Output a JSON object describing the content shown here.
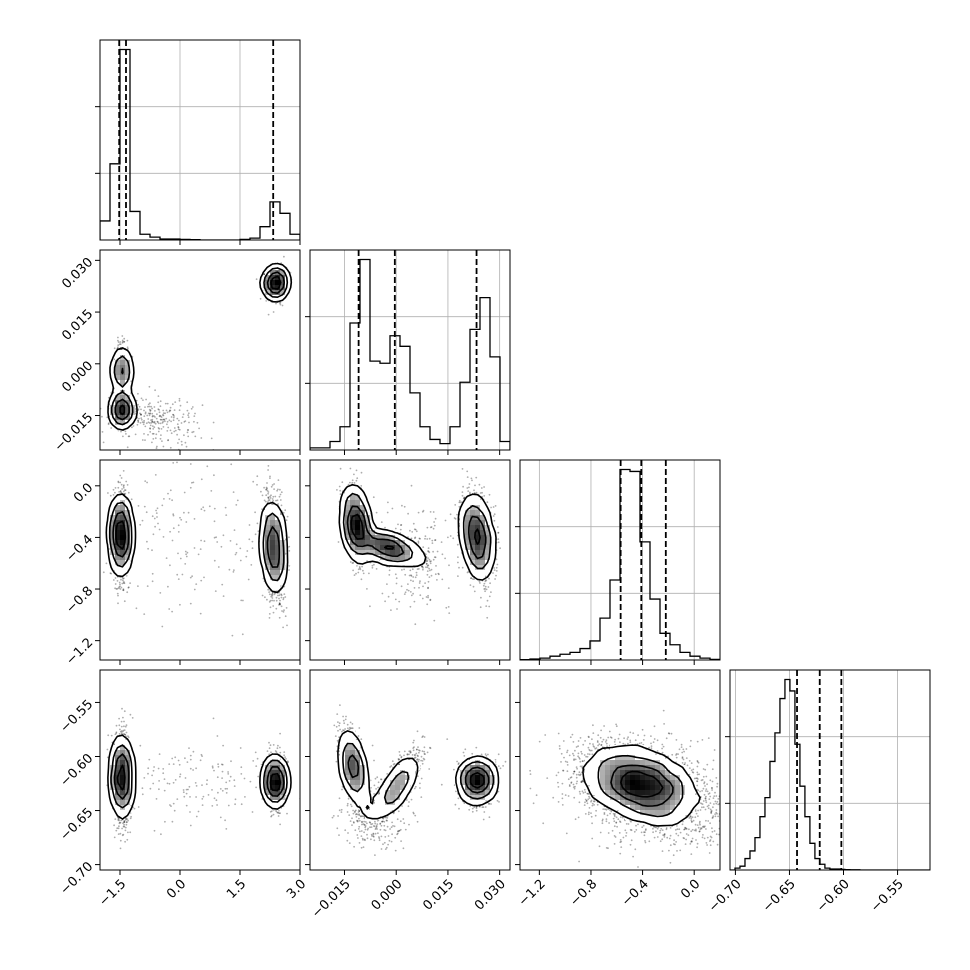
{
  "chart_data": {
    "type": "corner",
    "grid": true,
    "parameters": [
      {
        "range": [
          -2.0,
          3.0
        ],
        "ticks": [
          {
            "v": -1.5,
            "label": "−1.5"
          },
          {
            "v": 0.0,
            "label": "0.0"
          },
          {
            "v": 1.5,
            "label": "1.5"
          },
          {
            "v": 3.0,
            "label": "3.0"
          }
        ],
        "quantiles": [
          -1.52,
          -1.35,
          2.33
        ],
        "hist": {
          "start": -2.0,
          "width": 0.25,
          "counts": [
            10,
            40,
            100,
            15,
            3,
            1.5,
            0.5,
            0.5,
            0.3,
            0.2,
            0,
            0,
            0,
            0,
            0.3,
            1,
            7,
            20,
            14,
            3
          ]
        }
      },
      {
        "range": [
          -0.025,
          0.033
        ],
        "ticks": [
          {
            "v": -0.015,
            "label": "−0.015"
          },
          {
            "v": 0.0,
            "label": "0.000"
          },
          {
            "v": 0.015,
            "label": "0.015"
          },
          {
            "v": 0.03,
            "label": "0.030"
          }
        ],
        "quantiles": [
          -0.0109,
          -0.0004,
          0.0233
        ],
        "hist": {
          "start": -0.025,
          "width": 0.0029,
          "counts": [
            1,
            1,
            4,
            11,
            60,
            90,
            42,
            41,
            54,
            49,
            27,
            11,
            5,
            3,
            11,
            32,
            57,
            72,
            44,
            4
          ]
        }
      },
      {
        "range": [
          -1.35,
          0.2
        ],
        "ticks": [
          {
            "v": -1.2,
            "label": "−1.2"
          },
          {
            "v": -0.8,
            "label": "−0.8"
          },
          {
            "v": -0.4,
            "label": "−0.4"
          },
          {
            "v": 0.0,
            "label": "0.0"
          }
        ],
        "quantiles": [
          -0.57,
          -0.41,
          -0.22
        ],
        "hist": {
          "start": -1.35,
          "width": 0.0775,
          "counts": [
            0.2,
            0.5,
            1,
            2,
            3,
            4,
            6,
            10,
            22,
            42,
            100,
            99,
            62,
            32,
            14,
            8,
            4,
            2,
            1,
            0.3
          ]
        }
      },
      {
        "range": [
          -0.705,
          -0.52
        ],
        "ticks": [
          {
            "v": -0.7,
            "label": "−0.70"
          },
          {
            "v": -0.65,
            "label": "−0.65"
          },
          {
            "v": -0.6,
            "label": "−0.60"
          },
          {
            "v": -0.55,
            "label": "−0.55"
          }
        ],
        "quantiles": [
          -0.643,
          -0.622,
          -0.602
        ],
        "hist": {
          "start": -0.705,
          "width": 0.00462,
          "counts": [
            0,
            1,
            2,
            6,
            10,
            17,
            28,
            38,
            57,
            72,
            90,
            100,
            94,
            66,
            44,
            28,
            14,
            6,
            3,
            1,
            0.5,
            0.5,
            0.3,
            0.2,
            0.1,
            0.1,
            0,
            0,
            0,
            0,
            0,
            0,
            0,
            0,
            0,
            0,
            0,
            0,
            0,
            0
          ]
        }
      }
    ],
    "pairs": [
      {
        "row": 1,
        "col": 0,
        "clusters": [
          {
            "x": 2.4,
            "y": 0.0235,
            "sx": 0.12,
            "sy": 0.0022,
            "rho": 0.0,
            "n": 1300
          },
          {
            "x": -1.45,
            "y": -0.002,
            "sx": 0.09,
            "sy": 0.0035,
            "rho": 0.0,
            "n": 900
          },
          {
            "x": -1.45,
            "y": -0.0135,
            "sx": 0.11,
            "sy": 0.0022,
            "rho": 0.0,
            "n": 1100
          },
          {
            "x": -0.6,
            "y": -0.016,
            "sx": 0.55,
            "sy": 0.0035,
            "rho": -0.2,
            "n": 260
          }
        ]
      },
      {
        "row": 2,
        "col": 0,
        "clusters": [
          {
            "x": -1.48,
            "y": -0.38,
            "sx": 0.1,
            "sy": 0.15,
            "rho": 0.0,
            "n": 2000
          },
          {
            "x": 2.35,
            "y": -0.48,
            "sx": 0.12,
            "sy": 0.18,
            "rho": -0.2,
            "n": 1900
          },
          {
            "x": 0.4,
            "y": -0.4,
            "sx": 1.1,
            "sy": 0.3,
            "rho": 0.0,
            "n": 160
          }
        ]
      },
      {
        "row": 2,
        "col": 1,
        "clusters": [
          {
            "x": -0.0115,
            "y": -0.3,
            "sx": 0.0018,
            "sy": 0.14,
            "rho": -0.3,
            "n": 1300
          },
          {
            "x": -0.002,
            "y": -0.48,
            "sx": 0.0045,
            "sy": 0.06,
            "rho": -0.6,
            "n": 1000
          },
          {
            "x": 0.0235,
            "y": -0.4,
            "sx": 0.0022,
            "sy": 0.16,
            "rho": -0.3,
            "n": 1500
          },
          {
            "x": 0.005,
            "y": -0.55,
            "sx": 0.006,
            "sy": 0.2,
            "rho": 0.0,
            "n": 220
          }
        ]
      },
      {
        "row": 3,
        "col": 0,
        "clusters": [
          {
            "x": -1.45,
            "y": -0.62,
            "sx": 0.1,
            "sy": 0.019,
            "rho": 0.0,
            "n": 2000
          },
          {
            "x": 2.38,
            "y": -0.623,
            "sx": 0.12,
            "sy": 0.011,
            "rho": 0.0,
            "n": 1500
          },
          {
            "x": 0.5,
            "y": -0.62,
            "sx": 1.0,
            "sy": 0.02,
            "rho": 0.0,
            "n": 150
          }
        ]
      },
      {
        "row": 3,
        "col": 1,
        "clusters": [
          {
            "x": -0.0125,
            "y": -0.61,
            "sx": 0.0018,
            "sy": 0.017,
            "rho": -0.5,
            "n": 1200
          },
          {
            "x": 0.0,
            "y": -0.628,
            "sx": 0.0035,
            "sy": 0.016,
            "rho": 0.75,
            "n": 900
          },
          {
            "x": 0.0235,
            "y": -0.623,
            "sx": 0.0025,
            "sy": 0.01,
            "rho": 0.0,
            "n": 1500
          },
          {
            "x": -0.006,
            "y": -0.66,
            "sx": 0.005,
            "sy": 0.012,
            "rho": 0.0,
            "n": 200
          }
        ]
      },
      {
        "row": 3,
        "col": 2,
        "clusters": [
          {
            "x": -0.42,
            "y": -0.625,
            "sx": 0.2,
            "sy": 0.016,
            "rho": -0.35,
            "n": 4200
          },
          {
            "x": -0.3,
            "y": -0.64,
            "sx": 0.33,
            "sy": 0.024,
            "rho": -0.25,
            "n": 900
          }
        ]
      }
    ]
  }
}
